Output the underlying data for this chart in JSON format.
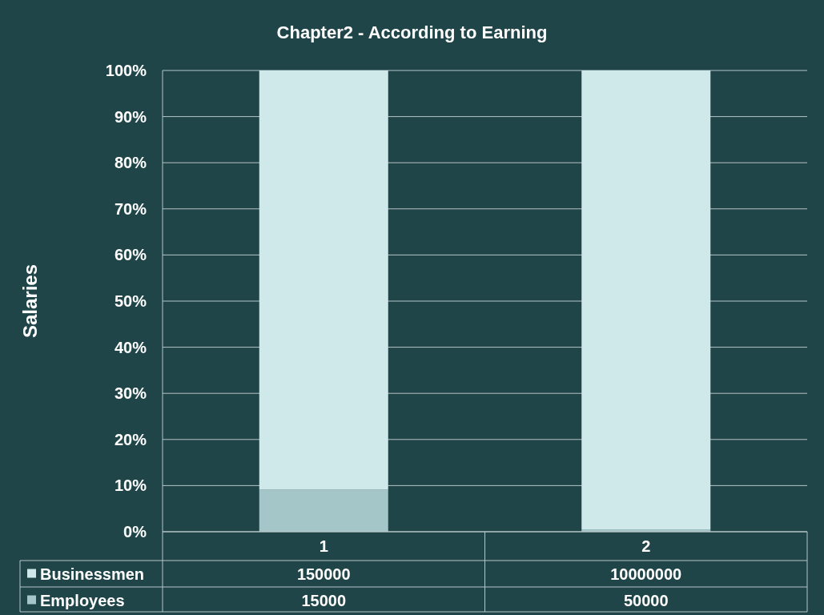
{
  "chart_data": {
    "type": "bar",
    "stacked": true,
    "title": "Chapter2 - According to Earning",
    "ylabel": "Salaries",
    "categories": [
      "1",
      "2"
    ],
    "series": [
      {
        "name": "Employees",
        "color": "#a5c6c8",
        "values": [
          9.1,
          0.5
        ]
      },
      {
        "name": "Businessmen",
        "color": "#cfe8e9",
        "values": [
          90.9,
          99.5
        ]
      }
    ],
    "annotations": [
      "150000",
      "10000000",
      "15000",
      "50000"
    ],
    "ylim": [
      0,
      100
    ],
    "yticks": [
      {
        "value": 0,
        "label": "0%"
      },
      {
        "value": 10,
        "label": "10%"
      },
      {
        "value": 20,
        "label": "20%"
      },
      {
        "value": 30,
        "label": "30%"
      },
      {
        "value": 40,
        "label": "40%"
      },
      {
        "value": 50,
        "label": "50%"
      },
      {
        "value": 60,
        "label": "60%"
      },
      {
        "value": 70,
        "label": "70%"
      },
      {
        "value": 80,
        "label": "80%"
      },
      {
        "value": 90,
        "label": "90%"
      },
      {
        "value": 100,
        "label": "100%"
      }
    ],
    "grid": "y",
    "legend": "bottom"
  }
}
